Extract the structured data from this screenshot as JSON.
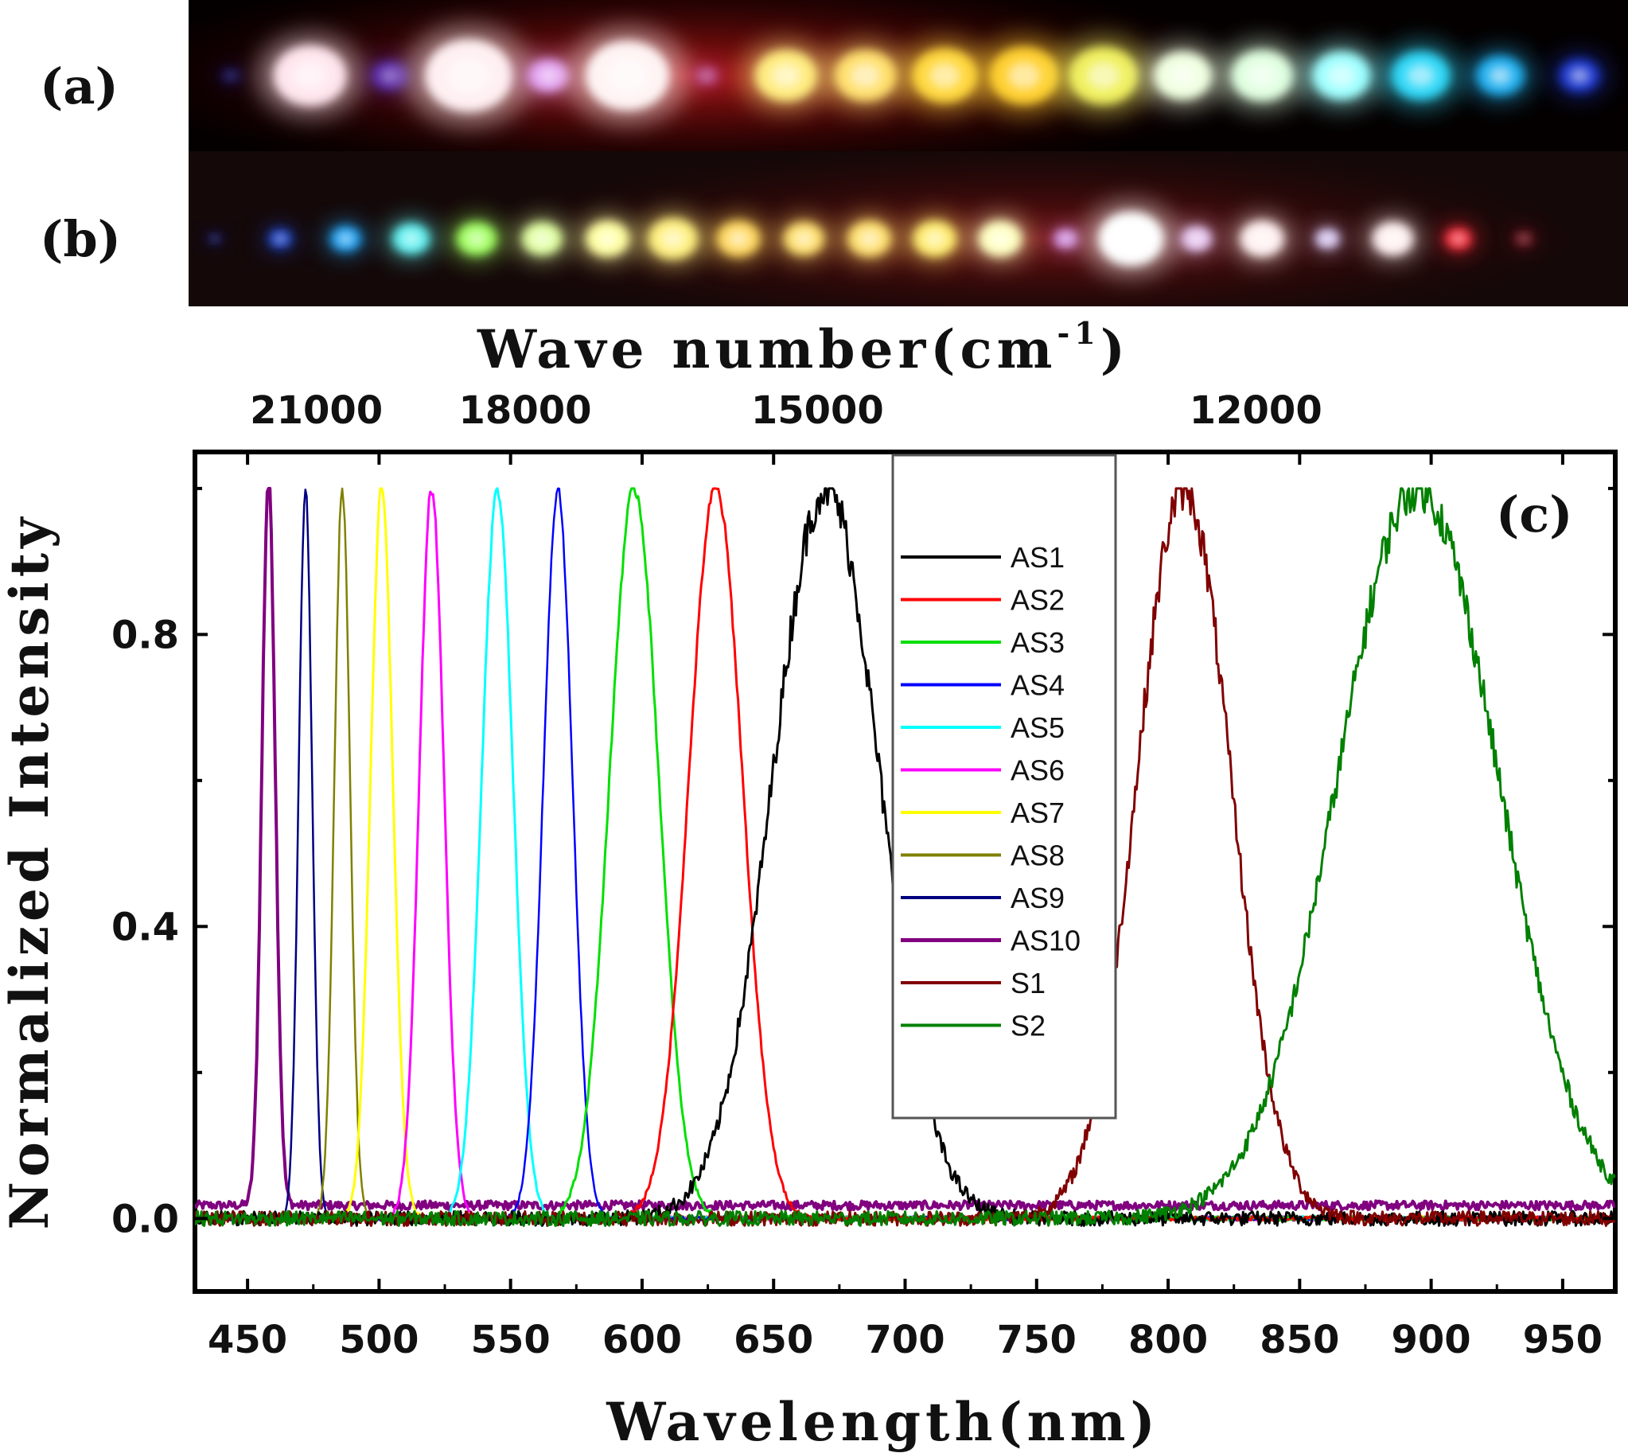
{
  "panels": {
    "a_label": "(a)",
    "b_label": "(b)",
    "c_label": "(c)"
  },
  "photo_a_spots": [
    {
      "color": "#1a2bd0",
      "size": 0.3,
      "bright": 0.3
    },
    {
      "color": "#ffe6ee",
      "size": 1.0,
      "bright": 1.0
    },
    {
      "color": "#6b3df0",
      "size": 0.5,
      "bright": 0.6
    },
    {
      "color": "#fff0f2",
      "size": 1.2,
      "bright": 1.0
    },
    {
      "color": "#e8a8ff",
      "size": 0.55,
      "bright": 0.9
    },
    {
      "color": "#fff4f4",
      "size": 1.15,
      "bright": 1.0
    },
    {
      "color": "#c060c0",
      "size": 0.35,
      "bright": 0.5
    },
    {
      "color": "#ffec80",
      "size": 0.85,
      "bright": 1.0
    },
    {
      "color": "#ffe070",
      "size": 0.85,
      "bright": 1.0
    },
    {
      "color": "#ffd840",
      "size": 0.9,
      "bright": 1.0
    },
    {
      "color": "#ffd030",
      "size": 0.95,
      "bright": 1.0
    },
    {
      "color": "#f0f060",
      "size": 0.95,
      "bright": 1.0
    },
    {
      "color": "#f0ffe0",
      "size": 0.8,
      "bright": 1.0
    },
    {
      "color": "#e0ffe0",
      "size": 0.85,
      "bright": 1.0
    },
    {
      "color": "#a0ffff",
      "size": 0.8,
      "bright": 1.0
    },
    {
      "color": "#30d8f8",
      "size": 0.8,
      "bright": 1.0
    },
    {
      "color": "#20b0f0",
      "size": 0.65,
      "bright": 1.0
    },
    {
      "color": "#2040e0",
      "size": 0.55,
      "bright": 0.9
    }
  ],
  "photo_b_spots": [
    {
      "color": "#2030c0",
      "size": 0.25,
      "bright": 0.4
    },
    {
      "color": "#2050e0",
      "size": 0.4,
      "bright": 0.8
    },
    {
      "color": "#20a0f0",
      "size": 0.5,
      "bright": 1.0
    },
    {
      "color": "#60f0f0",
      "size": 0.6,
      "bright": 1.0
    },
    {
      "color": "#a0ff60",
      "size": 0.65,
      "bright": 1.0
    },
    {
      "color": "#e0ffa0",
      "size": 0.65,
      "bright": 1.0
    },
    {
      "color": "#ffffa0",
      "size": 0.7,
      "bright": 1.0
    },
    {
      "color": "#fff080",
      "size": 0.8,
      "bright": 1.0
    },
    {
      "color": "#ffd860",
      "size": 0.7,
      "bright": 1.0
    },
    {
      "color": "#ffe070",
      "size": 0.65,
      "bright": 1.0
    },
    {
      "color": "#ffe070",
      "size": 0.7,
      "bright": 1.0
    },
    {
      "color": "#ffec70",
      "size": 0.7,
      "bright": 1.0
    },
    {
      "color": "#ffffc0",
      "size": 0.7,
      "bright": 1.0
    },
    {
      "color": "#e0a0ff",
      "size": 0.4,
      "bright": 0.8
    },
    {
      "color": "#ffffff",
      "size": 1.05,
      "bright": 1.0
    },
    {
      "color": "#f0d0ff",
      "size": 0.5,
      "bright": 0.9
    },
    {
      "color": "#fff0f0",
      "size": 0.7,
      "bright": 1.0
    },
    {
      "color": "#e0d0ff",
      "size": 0.4,
      "bright": 0.9
    },
    {
      "color": "#fff0f0",
      "size": 0.65,
      "bright": 1.0
    },
    {
      "color": "#ff3040",
      "size": 0.45,
      "bright": 0.9
    },
    {
      "color": "#a02030",
      "size": 0.35,
      "bright": 0.5
    }
  ],
  "chart_data": {
    "type": "line",
    "xlabel": "Wavelength(nm)",
    "ylabel": "Normalized Intensity",
    "top_axis_label": "Wave number(cm",
    "top_axis_label_sup": "-1",
    "top_axis_label_end": ")",
    "xlim": [
      430,
      970
    ],
    "ylim": [
      -0.1,
      1.05
    ],
    "x_ticks": [
      450,
      500,
      550,
      600,
      650,
      700,
      750,
      800,
      850,
      900,
      950
    ],
    "y_ticks": [
      0.0,
      0.4,
      0.8
    ],
    "y_tick_labels": [
      "0.0",
      "0.4",
      "0.8"
    ],
    "top_ticks": [
      21000,
      18000,
      15000,
      12000
    ],
    "legend_position": "top-center",
    "series": [
      {
        "name": "AS1",
        "color": "#000000",
        "center": 670,
        "fwhm": 48,
        "peak": 1.0,
        "width": 3
      },
      {
        "name": "AS2",
        "color": "#ff0000",
        "center": 628,
        "fwhm": 24,
        "peak": 1.0,
        "width": 3
      },
      {
        "name": "AS3",
        "color": "#00e000",
        "center": 597,
        "fwhm": 22,
        "peak": 1.0,
        "width": 3
      },
      {
        "name": "AS4",
        "color": "#0000ff",
        "center": 568,
        "fwhm": 13,
        "peak": 1.0,
        "width": 2.5
      },
      {
        "name": "AS5",
        "color": "#00ffff",
        "center": 545,
        "fwhm": 14,
        "peak": 1.0,
        "width": 3
      },
      {
        "name": "AS6",
        "color": "#ff00ff",
        "center": 520,
        "fwhm": 11,
        "peak": 1.0,
        "width": 3
      },
      {
        "name": "AS7",
        "color": "#ffff00",
        "center": 501,
        "fwhm": 10,
        "peak": 1.0,
        "width": 3
      },
      {
        "name": "AS8",
        "color": "#808000",
        "center": 486,
        "fwhm": 7,
        "peak": 1.0,
        "width": 2.5
      },
      {
        "name": "AS9",
        "color": "#000080",
        "center": 472,
        "fwhm": 6,
        "peak": 1.0,
        "width": 2.5
      },
      {
        "name": "AS10",
        "color": "#800080",
        "center": 458,
        "fwhm": 6,
        "peak": 1.0,
        "width": 4
      },
      {
        "name": "S1",
        "color": "#800000",
        "center": 806,
        "fwhm": 42,
        "peak": 1.0,
        "width": 3
      },
      {
        "name": "S2",
        "color": "#008000",
        "center": 895,
        "fwhm": 72,
        "peak": 1.0,
        "width": 3
      }
    ]
  }
}
